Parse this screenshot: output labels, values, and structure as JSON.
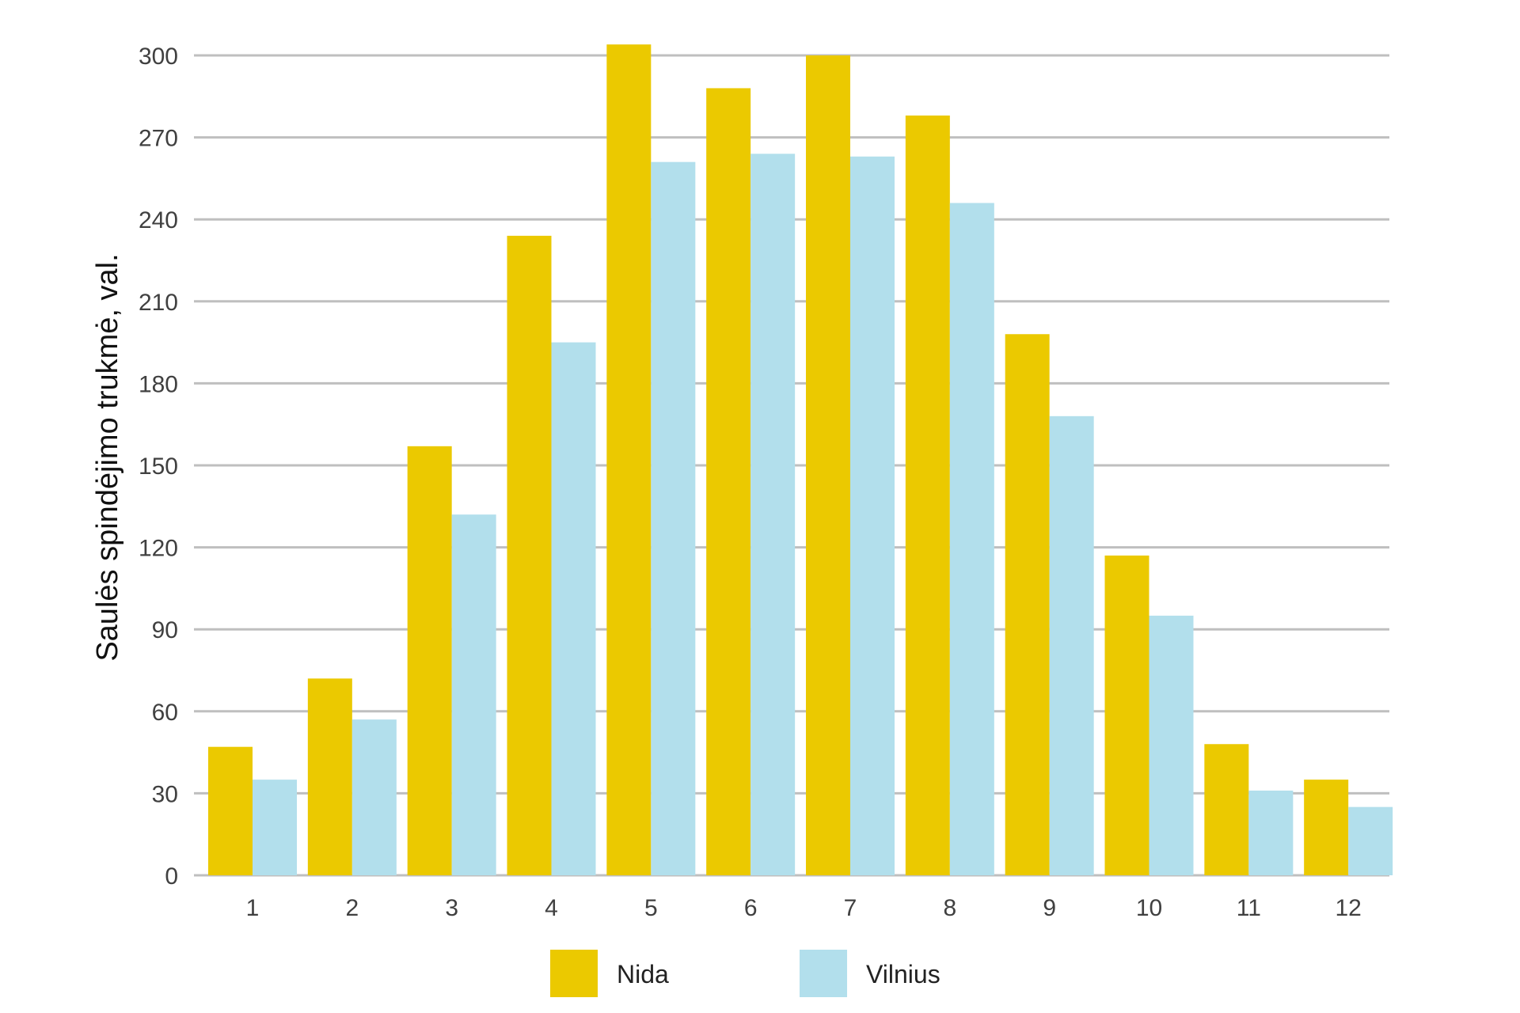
{
  "chart_data": {
    "type": "bar",
    "title": "",
    "xlabel": "",
    "ylabel": "Saulės spindėjimo trukmė, val.",
    "categories": [
      "1",
      "2",
      "3",
      "4",
      "5",
      "6",
      "7",
      "8",
      "9",
      "10",
      "11",
      "12"
    ],
    "ylim": [
      0,
      300
    ],
    "yticks": [
      "0",
      "30",
      "60",
      "90",
      "120",
      "150",
      "180",
      "210",
      "240",
      "270",
      "300"
    ],
    "grid": true,
    "legend_position": "bottom-center",
    "series": [
      {
        "name": "Nida",
        "color": "#ebc900",
        "values": [
          47,
          72,
          157,
          234,
          304,
          288,
          300,
          278,
          198,
          117,
          48,
          35
        ]
      },
      {
        "name": "Vilnius",
        "color": "#b2dfec",
        "values": [
          35,
          57,
          132,
          195,
          261,
          264,
          263,
          246,
          168,
          95,
          31,
          25
        ]
      }
    ]
  }
}
